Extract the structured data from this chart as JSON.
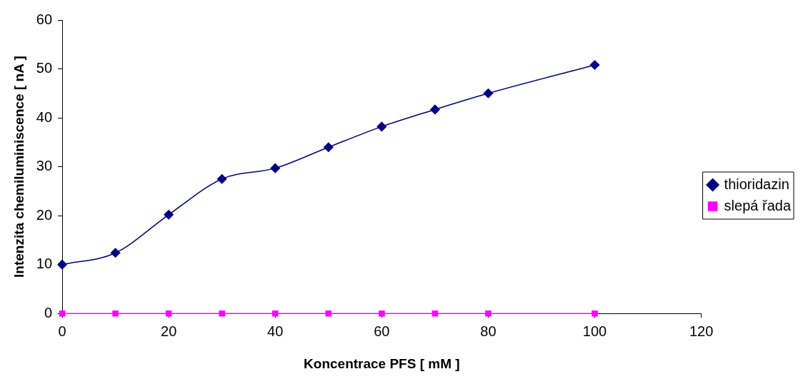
{
  "chart_data": {
    "type": "line",
    "xlabel": "Koncentrace PFS [ mM ]",
    "ylabel": "Intenzita chemiluminiscence [ nA ]",
    "xlim": [
      0,
      120
    ],
    "xticks": [
      0,
      20,
      40,
      60,
      80,
      100,
      120
    ],
    "ylim": [
      0,
      60
    ],
    "yticks": [
      0,
      10,
      20,
      30,
      40,
      50,
      60
    ],
    "grid": false,
    "legend": "right",
    "series": [
      {
        "name": "thioridazin",
        "color": "#000080",
        "marker": "diamond",
        "x": [
          0,
          10,
          20,
          30,
          40,
          50,
          60,
          70,
          80,
          100
        ],
        "values": [
          10,
          12.4,
          20.2,
          27.5,
          29.7,
          34,
          38.2,
          41.7,
          45,
          50.8
        ]
      },
      {
        "name": "slepá řada",
        "color": "#ff00ff",
        "marker": "square",
        "x": [
          0,
          10,
          20,
          30,
          40,
          50,
          60,
          70,
          80,
          100
        ],
        "values": [
          0,
          0,
          0,
          0,
          0,
          0,
          0,
          0,
          0,
          0
        ]
      }
    ]
  }
}
